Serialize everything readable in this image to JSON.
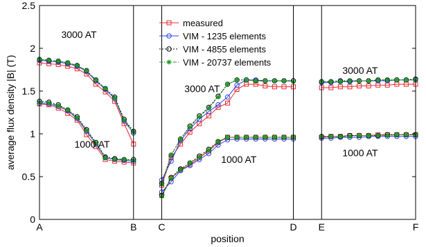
{
  "chart_data": {
    "type": "line",
    "xlabel": "position",
    "ylabel": "average flux density |B| (T)",
    "ylim": [
      0,
      2.5
    ],
    "yticks": [
      "0",
      "0.5",
      "1",
      "1.5",
      "2",
      "2.5"
    ],
    "xticks": [
      {
        "label": "A",
        "x": 0
      },
      {
        "label": "B",
        "x": 1
      },
      {
        "label": "C",
        "x": 1.3
      },
      {
        "label": "D",
        "x": 2.7
      },
      {
        "label": "E",
        "x": 3
      },
      {
        "label": "F",
        "x": 4
      }
    ],
    "xlim": [
      0,
      4
    ],
    "separators": [
      1,
      1.3,
      2.7,
      3
    ],
    "grid": false,
    "legend_position": "top-center",
    "annotations": [
      {
        "text": "3000 AT",
        "x": 0.42,
        "y": 2.16
      },
      {
        "text": "1000 AT",
        "x": 0.56,
        "y": 0.88
      },
      {
        "text": "3000 AT",
        "x": 1.73,
        "y": 1.53
      },
      {
        "text": "1000 AT",
        "x": 2.12,
        "y": 0.7
      },
      {
        "text": "3000 AT",
        "x": 3.41,
        "y": 1.74
      },
      {
        "text": "1000 AT",
        "x": 3.41,
        "y": 0.78
      }
    ],
    "series": [
      {
        "name": "measured",
        "color": "#e8262b",
        "marker": "square",
        "dash": "",
        "segments": [
          {
            "x": [
              0,
              0.1,
              0.2,
              0.3,
              0.4,
              0.5,
              0.6,
              0.7,
              0.8,
              0.9,
              1.0
            ],
            "y": [
              1.83,
              1.82,
              1.81,
              1.79,
              1.76,
              1.7,
              1.58,
              1.49,
              1.38,
              1.12,
              0.88
            ]
          },
          {
            "x": [
              0,
              0.1,
              0.2,
              0.3,
              0.4,
              0.5,
              0.6,
              0.7,
              0.8,
              0.9,
              1.0
            ],
            "y": [
              1.35,
              1.34,
              1.3,
              1.24,
              1.16,
              0.99,
              0.85,
              0.7,
              0.68,
              0.67,
              0.66
            ]
          },
          {
            "x": [
              1.3,
              1.4,
              1.5,
              1.6,
              1.7,
              1.8,
              1.9,
              2.0,
              2.1,
              2.2,
              2.3,
              2.4,
              2.5,
              2.6,
              2.7
            ],
            "y": [
              0.4,
              0.72,
              0.88,
              1.02,
              1.12,
              1.21,
              1.31,
              1.36,
              1.52,
              1.58,
              1.58,
              1.56,
              1.55,
              1.55,
              1.55
            ]
          },
          {
            "x": [
              1.3,
              1.4,
              1.5,
              1.6,
              1.7,
              1.8,
              1.9,
              2.0,
              2.1,
              2.2,
              2.3,
              2.4,
              2.5,
              2.6,
              2.7
            ],
            "y": [
              0.28,
              0.48,
              0.58,
              0.64,
              0.72,
              0.8,
              0.9,
              0.96,
              0.96,
              0.96,
              0.96,
              0.96,
              0.96,
              0.96,
              0.96
            ]
          },
          {
            "x": [
              3.0,
              3.1,
              3.2,
              3.3,
              3.4,
              3.5,
              3.6,
              3.7,
              3.8,
              3.9,
              4.0
            ],
            "y": [
              1.54,
              1.54,
              1.55,
              1.55,
              1.56,
              1.56,
              1.57,
              1.57,
              1.58,
              1.58,
              1.58
            ]
          },
          {
            "x": [
              3.0,
              3.1,
              3.2,
              3.3,
              3.4,
              3.5,
              3.6,
              3.7,
              3.8,
              3.9,
              4.0
            ],
            "y": [
              0.96,
              0.97,
              0.97,
              0.98,
              0.98,
              0.98,
              0.99,
              0.99,
              0.99,
              0.99,
              0.99
            ]
          }
        ]
      },
      {
        "name": "VIM - 1235 elements",
        "color": "#2b3fe6",
        "marker": "circle",
        "dash": "",
        "segments": [
          {
            "x": [
              0,
              0.1,
              0.2,
              0.3,
              0.4,
              0.5,
              0.6,
              0.7,
              0.8,
              0.9,
              1.0
            ],
            "y": [
              1.86,
              1.85,
              1.84,
              1.82,
              1.79,
              1.73,
              1.62,
              1.52,
              1.41,
              1.15,
              1.01
            ]
          },
          {
            "x": [
              0,
              0.1,
              0.2,
              0.3,
              0.4,
              0.5,
              0.6,
              0.7,
              0.8,
              0.9,
              1.0
            ],
            "y": [
              1.36,
              1.35,
              1.32,
              1.27,
              1.18,
              1.03,
              0.88,
              0.72,
              0.7,
              0.69,
              0.68
            ]
          },
          {
            "x": [
              1.3,
              1.4,
              1.5,
              1.6,
              1.7,
              1.8,
              1.9,
              2.0,
              2.1,
              2.2,
              2.3,
              2.4,
              2.5,
              2.6,
              2.7
            ],
            "y": [
              0.46,
              0.68,
              0.92,
              1.06,
              1.17,
              1.26,
              1.34,
              1.43,
              1.57,
              1.63,
              1.63,
              1.62,
              1.62,
              1.62,
              1.62
            ]
          },
          {
            "x": [
              1.3,
              1.4,
              1.5,
              1.6,
              1.7,
              1.8,
              1.9,
              2.0,
              2.1,
              2.2,
              2.3,
              2.4,
              2.5,
              2.6,
              2.7
            ],
            "y": [
              0.32,
              0.44,
              0.57,
              0.63,
              0.7,
              0.77,
              0.87,
              0.93,
              0.94,
              0.94,
              0.94,
              0.94,
              0.94,
              0.94,
              0.94
            ]
          },
          {
            "x": [
              3.0,
              3.1,
              3.2,
              3.3,
              3.4,
              3.5,
              3.6,
              3.7,
              3.8,
              3.9,
              4.0
            ],
            "y": [
              1.6,
              1.6,
              1.61,
              1.61,
              1.62,
              1.62,
              1.62,
              1.62,
              1.63,
              1.63,
              1.63
            ]
          },
          {
            "x": [
              3.0,
              3.1,
              3.2,
              3.3,
              3.4,
              3.5,
              3.6,
              3.7,
              3.8,
              3.9,
              4.0
            ],
            "y": [
              0.95,
              0.95,
              0.96,
              0.96,
              0.96,
              0.97,
              0.97,
              0.97,
              0.97,
              0.97,
              0.97
            ]
          }
        ]
      },
      {
        "name": "VIM - 4855 elements",
        "color": "#000000",
        "marker": "circle",
        "dash": "2,2",
        "segments": [
          {
            "x": [
              0,
              0.1,
              0.2,
              0.3,
              0.4,
              0.5,
              0.6,
              0.7,
              0.8,
              0.9,
              1.0
            ],
            "y": [
              1.87,
              1.86,
              1.85,
              1.83,
              1.8,
              1.74,
              1.63,
              1.53,
              1.43,
              1.17,
              1.03
            ]
          },
          {
            "x": [
              0,
              0.1,
              0.2,
              0.3,
              0.4,
              0.5,
              0.6,
              0.7,
              0.8,
              0.9,
              1.0
            ],
            "y": [
              1.38,
              1.37,
              1.34,
              1.28,
              1.2,
              1.05,
              0.9,
              0.73,
              0.71,
              0.7,
              0.7
            ]
          },
          {
            "x": [
              1.3,
              1.4,
              1.5,
              1.6,
              1.7,
              1.8,
              1.9,
              2.0,
              2.1,
              2.2,
              2.3,
              2.4,
              2.5,
              2.6,
              2.7
            ],
            "y": [
              0.42,
              0.75,
              0.94,
              1.09,
              1.21,
              1.31,
              1.44,
              1.58,
              1.63,
              1.63,
              1.62,
              1.62,
              1.62,
              1.62,
              1.62
            ]
          },
          {
            "x": [
              1.3,
              1.4,
              1.5,
              1.6,
              1.7,
              1.8,
              1.9,
              2.0,
              2.1,
              2.2,
              2.3,
              2.4,
              2.5,
              2.6,
              2.7
            ],
            "y": [
              0.28,
              0.49,
              0.59,
              0.66,
              0.74,
              0.82,
              0.91,
              0.96,
              0.96,
              0.96,
              0.96,
              0.96,
              0.96,
              0.96,
              0.96
            ]
          },
          {
            "x": [
              3.0,
              3.1,
              3.2,
              3.3,
              3.4,
              3.5,
              3.6,
              3.7,
              3.8,
              3.9,
              4.0
            ],
            "y": [
              1.61,
              1.61,
              1.62,
              1.62,
              1.62,
              1.62,
              1.63,
              1.63,
              1.63,
              1.63,
              1.64
            ]
          },
          {
            "x": [
              3.0,
              3.1,
              3.2,
              3.3,
              3.4,
              3.5,
              3.6,
              3.7,
              3.8,
              3.9,
              4.0
            ],
            "y": [
              0.97,
              0.97,
              0.97,
              0.98,
              0.98,
              0.98,
              0.98,
              0.99,
              0.99,
              0.99,
              0.99
            ]
          }
        ]
      },
      {
        "name": "VIM - 20737 elements",
        "color": "#1f9a1f",
        "marker": "star",
        "dash": "5,2,1,2",
        "segments": [
          {
            "x": [
              0,
              0.1,
              0.2,
              0.3,
              0.4,
              0.5,
              0.6,
              0.7,
              0.8,
              0.9,
              1.0
            ],
            "y": [
              1.87,
              1.86,
              1.85,
              1.83,
              1.8,
              1.74,
              1.63,
              1.53,
              1.42,
              1.16,
              1.02
            ]
          },
          {
            "x": [
              0,
              0.1,
              0.2,
              0.3,
              0.4,
              0.5,
              0.6,
              0.7,
              0.8,
              0.9,
              1.0
            ],
            "y": [
              1.37,
              1.36,
              1.33,
              1.28,
              1.19,
              1.04,
              0.89,
              0.72,
              0.7,
              0.7,
              0.69
            ]
          },
          {
            "x": [
              1.3,
              1.4,
              1.5,
              1.6,
              1.7,
              1.8,
              1.9,
              2.0,
              2.1,
              2.2,
              2.3,
              2.4,
              2.5,
              2.6,
              2.7
            ],
            "y": [
              0.41,
              0.75,
              0.94,
              1.08,
              1.2,
              1.3,
              1.43,
              1.58,
              1.63,
              1.63,
              1.62,
              1.62,
              1.62,
              1.62,
              1.61
            ]
          },
          {
            "x": [
              1.3,
              1.4,
              1.5,
              1.6,
              1.7,
              1.8,
              1.9,
              2.0,
              2.1,
              2.2,
              2.3,
              2.4,
              2.5,
              2.6,
              2.7
            ],
            "y": [
              0.27,
              0.48,
              0.58,
              0.66,
              0.73,
              0.81,
              0.91,
              0.96,
              0.96,
              0.96,
              0.96,
              0.96,
              0.96,
              0.96,
              0.96
            ]
          },
          {
            "x": [
              3.0,
              3.1,
              3.2,
              3.3,
              3.4,
              3.5,
              3.6,
              3.7,
              3.8,
              3.9,
              4.0
            ],
            "y": [
              1.61,
              1.61,
              1.61,
              1.62,
              1.62,
              1.62,
              1.63,
              1.63,
              1.63,
              1.63,
              1.63
            ]
          },
          {
            "x": [
              3.0,
              3.1,
              3.2,
              3.3,
              3.4,
              3.5,
              3.6,
              3.7,
              3.8,
              3.9,
              4.0
            ],
            "y": [
              0.97,
              0.97,
              0.97,
              0.97,
              0.98,
              0.98,
              0.98,
              0.98,
              0.99,
              0.99,
              0.99
            ]
          }
        ]
      }
    ]
  }
}
